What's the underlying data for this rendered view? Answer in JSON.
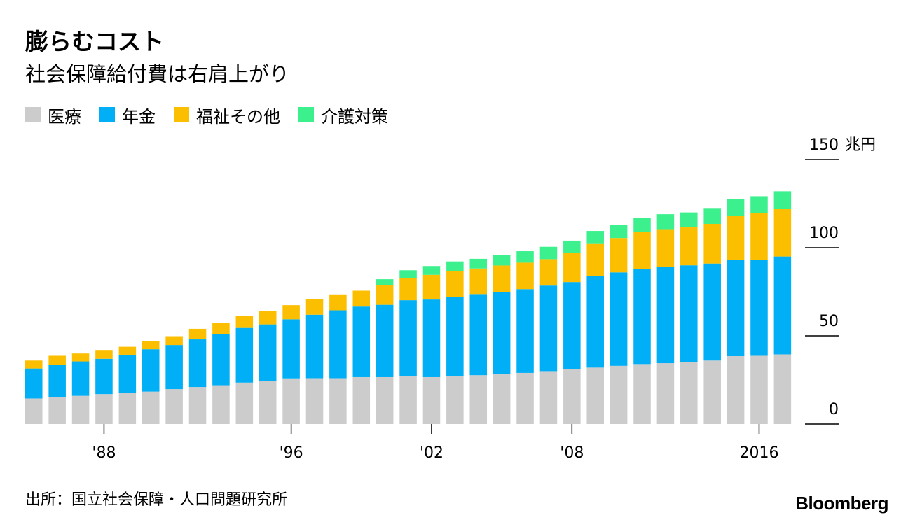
{
  "header": {
    "title": "膨らむコスト",
    "subtitle": "社会保障給付費は右肩上がり"
  },
  "legend": [
    {
      "label": "医療",
      "color": "#cccccc"
    },
    {
      "label": "年金",
      "color": "#00aff5"
    },
    {
      "label": "福祉その他",
      "color": "#fcbf00"
    },
    {
      "label": "介護対策",
      "color": "#3df08e"
    }
  ],
  "footer": {
    "source": "出所：国立社会保障・人口問題研究所",
    "brand": "Bloomberg"
  },
  "chart_data": {
    "type": "bar",
    "stacked": true,
    "x": [
      1985,
      1986,
      1987,
      1988,
      1989,
      1990,
      1991,
      1992,
      1993,
      1994,
      1995,
      1996,
      1997,
      1998,
      1999,
      2000,
      2001,
      2002,
      2003,
      2004,
      2005,
      2006,
      2007,
      2008,
      2009,
      2010,
      2011,
      2012,
      2013,
      2014,
      2015,
      2016,
      2017
    ],
    "x_ticks": [
      {
        "value": 1988,
        "label": "'88"
      },
      {
        "value": 1996,
        "label": "'96"
      },
      {
        "value": 2002,
        "label": "'02"
      },
      {
        "value": 2008,
        "label": "'08"
      },
      {
        "value": 2016,
        "label": "2016"
      }
    ],
    "series": [
      {
        "name": "医療",
        "color": "#cccccc",
        "values": [
          14.5,
          15.2,
          16.0,
          17.0,
          17.8,
          18.4,
          19.8,
          21.0,
          22.0,
          23.5,
          24.5,
          25.9,
          26.0,
          26.0,
          26.6,
          26.6,
          27.2,
          26.6,
          27.2,
          27.7,
          28.4,
          29.0,
          30.0,
          31.0,
          32.0,
          33.0,
          34.0,
          34.5,
          35.0,
          36.0,
          38.5,
          38.7,
          39.5
        ]
      },
      {
        "name": "年金",
        "color": "#00aff5",
        "values": [
          17.0,
          18.5,
          19.5,
          20.0,
          21.5,
          24.0,
          25.0,
          27.0,
          29.0,
          31.0,
          32.0,
          33.5,
          36.0,
          38.5,
          40.0,
          41.0,
          43.0,
          44.0,
          45.0,
          46.0,
          46.5,
          47.5,
          48.5,
          49.5,
          52.0,
          53.0,
          54.0,
          54.5,
          55.0,
          55.0,
          54.5,
          54.5,
          55.5
        ]
      },
      {
        "name": "福祉その他",
        "color": "#fcbf00",
        "values": [
          4.5,
          5.0,
          4.5,
          5.0,
          4.5,
          4.5,
          5.0,
          6.0,
          6.5,
          7.0,
          7.5,
          8.0,
          9.0,
          9.0,
          9.0,
          11.0,
          12.5,
          14.0,
          14.5,
          14.5,
          15.0,
          15.0,
          15.0,
          16.5,
          18.5,
          19.5,
          21.0,
          21.5,
          21.5,
          22.5,
          25.0,
          26.5,
          27.0
        ]
      },
      {
        "name": "介護対策",
        "color": "#3df08e",
        "values": [
          0,
          0,
          0,
          0,
          0,
          0,
          0,
          0,
          0,
          0,
          0,
          0,
          0,
          0,
          0,
          3.5,
          4.5,
          5.0,
          5.5,
          5.5,
          6.0,
          6.5,
          7.0,
          7.0,
          7.0,
          7.5,
          8.0,
          8.5,
          8.5,
          9.0,
          9.5,
          9.5,
          10.0
        ]
      }
    ],
    "y_ticks": [
      0,
      50,
      100,
      150
    ],
    "y_unit": "兆円",
    "ylim": [
      0,
      150
    ],
    "grid": false,
    "legend_position": "top-left"
  }
}
